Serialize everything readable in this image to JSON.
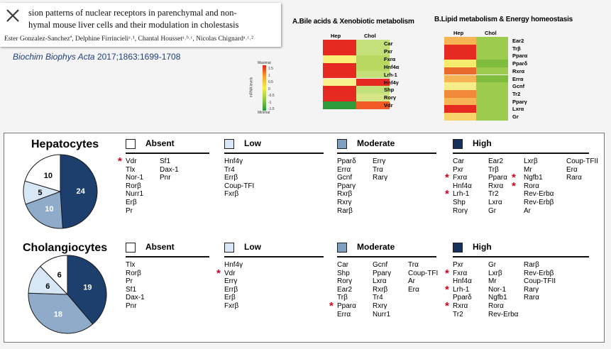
{
  "citation": {
    "title_line1": "sion patterns of nuclear receptors in parenchymal and non-",
    "title_line2": "hymal mouse liver cells and their modulation in cholestasis",
    "authors": "Ester Gonzalez-Sanchezª, Delphine Firrincieliᵃ˒¹, Chantal Houssetᵃ˒ᵇ˒ᶜ, Nicolas Chignardᵃ˒ᶜ˒²",
    "journal_name": "Biochim Biophys Acta",
    "journal_ref": " 2017;1863:1699-1708",
    "close_icon": "close-x-icon"
  },
  "heatmap_a": {
    "title": "A.Bile acids & Xenobiotic metabolism",
    "columns": [
      "Hep",
      "Chol"
    ],
    "rows": [
      {
        "label": "Car",
        "colors": [
          "#e62a22",
          "#c4e07a"
        ]
      },
      {
        "label": "Pxr",
        "colors": [
          "#e62a22",
          "#c4e07a"
        ]
      },
      {
        "label": "Fxrα",
        "colors": [
          "#f9f07a",
          "#b8d862"
        ]
      },
      {
        "label": "Hnf4α",
        "colors": [
          "#e62a22",
          "#b8d862"
        ]
      },
      {
        "label": "Lrh-1",
        "colors": [
          "#e62a22",
          "#c4e07a"
        ]
      },
      {
        "label": "Hnf4γ",
        "colors": [
          "#f7f08c",
          "#e62a22"
        ]
      },
      {
        "label": "Shp",
        "colors": [
          "#e62a22",
          "#c4e07a"
        ]
      },
      {
        "label": "Rorγ",
        "colors": [
          "#e62a22",
          "#d5e586"
        ]
      },
      {
        "label": "Vdr",
        "colors": [
          "#2e9b3a",
          "#f05a24"
        ]
      }
    ]
  },
  "heatmap_b": {
    "title": "B.Lipid metabolism & Energy homeostasis",
    "columns": [
      "Hep",
      "Chol"
    ],
    "rows": [
      {
        "label": "Ear2",
        "colors": [
          "#f7b454",
          "#9ccb4e"
        ]
      },
      {
        "label": "Trβ",
        "colors": [
          "#e62a22",
          "#9ccb4e"
        ]
      },
      {
        "label": "Pparα",
        "colors": [
          "#e62a22",
          "#9ccb4e"
        ]
      },
      {
        "label": "Pparδ",
        "colors": [
          "#f5ec6e",
          "#80bd3e"
        ]
      },
      {
        "label": "Rxrα",
        "colors": [
          "#e86a2c",
          "#9ccb4e"
        ]
      },
      {
        "label": "Errα",
        "colors": [
          "#f7b454",
          "#80bd3e"
        ]
      },
      {
        "label": "Gcnf",
        "colors": [
          "#f7ec8a",
          "#9ccb4e"
        ]
      },
      {
        "label": "Tr2",
        "colors": [
          "#f08a3a",
          "#9ccb4e"
        ]
      },
      {
        "label": "Pparγ",
        "colors": [
          "#f7b454",
          "#9ccb4e"
        ]
      },
      {
        "label": "Lxrα",
        "colors": [
          "#e62a22",
          "#9ccb4e"
        ]
      },
      {
        "label": "Gr",
        "colors": [
          "#f6d46a",
          "#9ccb4e"
        ]
      }
    ]
  },
  "scale": {
    "title": "Maximal",
    "axis": "mRNA levels",
    "ticks": [
      "1.5",
      "1",
      "0.5",
      "0",
      "-0.5",
      "-1",
      "-1.5"
    ],
    "bottom": "Minimal"
  },
  "sections": [
    {
      "title": "Hepatocytes",
      "pie": [
        {
          "value": 24,
          "color": "#1c3f6e",
          "label": "24"
        },
        {
          "value": 10,
          "color": "#8eabc9",
          "label": "10"
        },
        {
          "value": 5,
          "color": "#d8e7f5",
          "label": "5"
        },
        {
          "value": 10,
          "color": "#ffffff",
          "label": "10"
        }
      ],
      "categories": [
        {
          "label": "Absent",
          "color": "#ffffff",
          "columns": [
            [
              "Vdr",
              "Tlx",
              "Nor-1",
              "Rorβ",
              "Nurr1",
              "Erβ",
              "Pr"
            ],
            [
              "Sf1",
              "Dax-1",
              "Pnr"
            ]
          ]
        },
        {
          "label": "Low",
          "color": "#d8e7f5",
          "columns": [
            [
              "Hnf4γ",
              "Tr4",
              "Errβ",
              "Coup-TFI",
              "Fxrβ"
            ]
          ]
        },
        {
          "label": "Moderate",
          "color": "#7f9fc0",
          "columns": [
            [
              "Pparδ",
              "Errα",
              "Gcnf",
              "Pparγ",
              "Rxrβ",
              "Rxrγ",
              "Rarβ"
            ],
            [
              "Errγ",
              "Trα",
              "Rarγ"
            ]
          ]
        },
        {
          "label": "High",
          "color": "#15315c",
          "columns": [
            [
              "Car",
              "Pxr",
              "Fxrα",
              "Hnf4α",
              "Lrh-1",
              "Shp",
              "Rorγ"
            ],
            [
              "Ear2",
              "Trβ",
              "Pparα",
              "Rxrα",
              "Tr2",
              "Lxrα",
              "Gr"
            ],
            [
              "Lxrβ",
              "Mr",
              "Ngfb1",
              "Rorα",
              "Rev-Erbα",
              "Rev-Erbβ",
              "Ar"
            ],
            [
              "Coup-TFII",
              "Erα",
              "Rarα"
            ]
          ]
        }
      ]
    },
    {
      "title": "Cholangiocytes",
      "pie": [
        {
          "value": 19,
          "color": "#1c3f6e",
          "label": "19"
        },
        {
          "value": 18,
          "color": "#8eabc9",
          "label": "18"
        },
        {
          "value": 6,
          "color": "#d8e7f5",
          "label": "6"
        },
        {
          "value": 6,
          "color": "#ffffff",
          "label": "6"
        }
      ],
      "categories": [
        {
          "label": "Absent",
          "color": "#ffffff",
          "columns": [
            [
              "Tlx",
              "Rorβ",
              "Pr",
              "Sf1",
              "Dax-1",
              "Pnr"
            ]
          ]
        },
        {
          "label": "Low",
          "color": "#d8e7f5",
          "columns": [
            [
              "Hnf4γ",
              "Vdr",
              "Errγ",
              "Errβ",
              "Erβ",
              "Fxrβ"
            ]
          ]
        },
        {
          "label": "Moderate",
          "color": "#7f9fc0",
          "columns": [
            [
              "Car",
              "Shp",
              "Rorγ",
              "Ear2",
              "Trβ",
              "Pparα",
              "Errα"
            ],
            [
              "Gcnf",
              "Pparγ",
              "Lxrα",
              "Rxrβ",
              "Tr4",
              "Rxrγ",
              "Nurr1"
            ],
            [
              "Trα",
              "Coup-TFI",
              "Ar",
              "Erα"
            ]
          ]
        },
        {
          "label": "High",
          "color": "#15315c",
          "columns": [
            [
              "Pxr",
              "Fxrα",
              "Hnf4α",
              "Lrh-1",
              "Pparδ",
              "Rxrα",
              "Tr2"
            ],
            [
              "Gr",
              "Lxrβ",
              "Mr",
              "Nor-1",
              "Ngfb1",
              "Rorα",
              "Rev-Erbα"
            ],
            [
              "Rarβ",
              "Rev-Erbβ",
              "Coup-TFII",
              "Rarγ",
              "Rarα"
            ]
          ]
        }
      ]
    }
  ]
}
